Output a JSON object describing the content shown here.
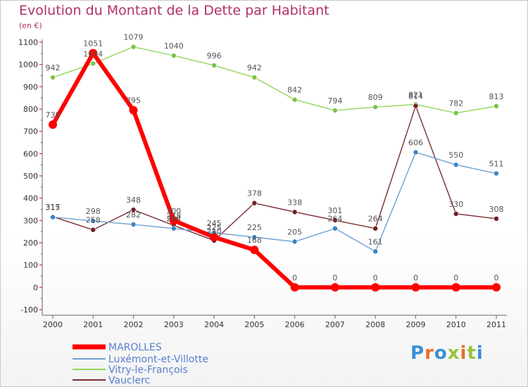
{
  "header": {
    "title": "Evolution du Montant de la Dette par Habitant",
    "subtitle": "(en €)"
  },
  "logo": {
    "text": "Proxiti",
    "colors": [
      "#3a8fd6",
      "#e8702a",
      "#3a8fd6",
      "#9ac23c",
      "#e8702a",
      "#9ac23c",
      "#3a8fd6"
    ]
  },
  "chart_data": {
    "type": "line",
    "title": "Evolution du Montant de la Dette par Habitant",
    "ylabel": "(en €)",
    "xlabel": "",
    "x": [
      "2000",
      "2001",
      "2002",
      "2003",
      "2004",
      "2005",
      "2006",
      "2007",
      "2008",
      "2009",
      "2010",
      "2011"
    ],
    "ylim": [
      -100,
      1100
    ],
    "yticks": [
      -100,
      0,
      100,
      200,
      300,
      400,
      500,
      600,
      700,
      800,
      900,
      1000,
      1100
    ],
    "grid": false,
    "legend": "bottom-left",
    "series": [
      {
        "name": "MAROLLES",
        "color": "#ff0000",
        "marker": "#ff0000",
        "width": 6,
        "radius": 6,
        "values": [
          730,
          1051,
          795,
          300,
          225,
          168,
          0,
          0,
          0,
          0,
          0,
          0
        ]
      },
      {
        "name": "Luxémont-et-Villotte",
        "color": "#6fa0d4",
        "marker": "#3a84c4",
        "width": 1.4,
        "radius": 3.5,
        "values": [
          315,
          298,
          282,
          264,
          245,
          225,
          205,
          264,
          161,
          606,
          550,
          511
        ]
      },
      {
        "name": "Vitry-le-François",
        "color": "#90d65a",
        "marker": "#7ec14b",
        "width": 1.4,
        "radius": 3.5,
        "values": [
          942,
          1004,
          1079,
          1040,
          996,
          942,
          842,
          794,
          809,
          821,
          782,
          813
        ]
      },
      {
        "name": "Vauclerc",
        "color": "#7a2d33",
        "marker": "#6e1f27",
        "width": 1.4,
        "radius": 3.5,
        "values": [
          317,
          258,
          348,
          278,
          210,
          378,
          338,
          301,
          264,
          814,
          330,
          308
        ]
      }
    ]
  }
}
